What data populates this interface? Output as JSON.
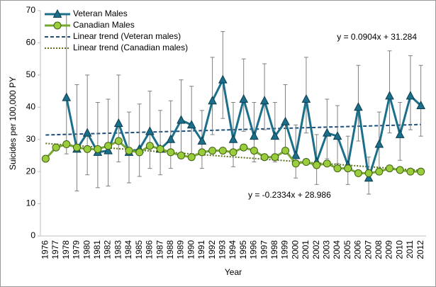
{
  "chart_data": {
    "type": "line",
    "y_label": "Suicides per 100,000 PY",
    "x_label": "Year",
    "categories": [
      "1976",
      "1977",
      "1978",
      "1979",
      "1980",
      "1981",
      "1982",
      "1983",
      "1984",
      "1985",
      "1986",
      "1987",
      "1988",
      "1989",
      "1990",
      "1991",
      "1992",
      "1993",
      "1994",
      "1995",
      "1996",
      "1997",
      "1998",
      "1999",
      "2000",
      "2001",
      "2002",
      "2003",
      "2004",
      "2005",
      "2006",
      "2007",
      "2008",
      "2009",
      "2010",
      "2011",
      "2012"
    ],
    "ylim": [
      0,
      70
    ],
    "yticks": [
      0,
      10,
      20,
      30,
      40,
      50,
      60,
      70
    ],
    "grid": false,
    "legend": "top-left",
    "series": [
      {
        "name": "Veteran Males",
        "color": "#1b6f8a",
        "marker": "triangle",
        "marker_color": "#1b6f8a",
        "values": [
          null,
          null,
          43,
          27,
          32,
          26,
          26.5,
          35,
          26,
          27,
          32.5,
          27,
          30,
          36,
          34.5,
          29.5,
          42,
          48.5,
          30,
          42.5,
          31,
          42,
          31,
          35.5,
          25,
          42.5,
          23,
          32,
          31,
          22,
          40,
          18,
          28.5,
          43.5,
          31.5,
          43.5,
          40.5
        ],
        "upper": [
          null,
          null,
          69,
          47,
          50,
          41.5,
          42.5,
          50,
          38.5,
          41,
          45,
          39,
          42,
          48.5,
          46.5,
          39,
          55.5,
          63.5,
          41.5,
          55,
          41.5,
          53.5,
          41.5,
          47,
          34.5,
          55.5,
          31.5,
          42.5,
          40.5,
          31,
          53,
          24.5,
          38.5,
          57.5,
          41.5,
          56,
          53
        ],
        "lower": [
          null,
          null,
          25.5,
          14,
          19,
          15,
          15.5,
          23,
          16.5,
          18.5,
          21,
          19,
          21,
          25.5,
          24,
          21,
          31.5,
          36.5,
          21.5,
          32.5,
          23,
          33,
          23,
          26,
          18,
          32,
          16,
          24,
          22.5,
          16,
          29.5,
          13,
          20.5,
          32,
          23.5,
          33,
          31
        ]
      },
      {
        "name": "Canadian Males",
        "color": "#76a831",
        "marker": "circle",
        "marker_color": "#9acd3c",
        "values": [
          24,
          27.5,
          28.5,
          27.5,
          27,
          27,
          28,
          29.5,
          26.5,
          26,
          28,
          27,
          26,
          25,
          24.5,
          26,
          26.5,
          26.5,
          26,
          27.5,
          26.5,
          24.5,
          24.5,
          26.5,
          22.5,
          23,
          22,
          22.5,
          21,
          21,
          19.5,
          19.5,
          20,
          21,
          20.5,
          20,
          20
        ]
      }
    ],
    "trends": [
      {
        "name": "Linear trend (Veteran males)",
        "color": "#1f4e79",
        "dash": "5,3",
        "slope": 0.0904,
        "intercept": 31.284,
        "label": "y = 0.0904x + 31.284"
      },
      {
        "name": "Linear trend (Canadian males)",
        "color": "#5b6f1c",
        "dash": "2,2",
        "slope": -0.2334,
        "intercept": 28.986,
        "label": "y = -0.2334x + 28.986"
      }
    ]
  }
}
